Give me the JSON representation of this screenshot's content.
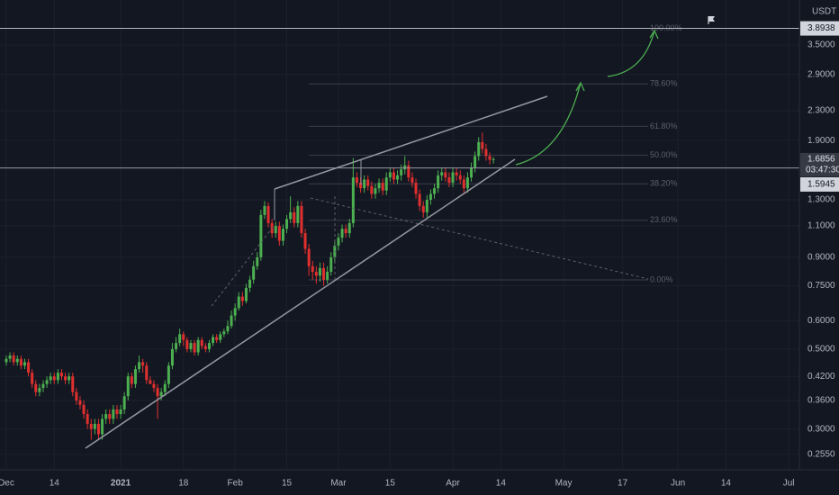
{
  "chart_data": {
    "type": "candlestick",
    "unit": "USDT",
    "log_scale": true,
    "up_color": "#4caf50",
    "down_color": "#e0302e",
    "ylim": [
      0.231,
      4.67
    ],
    "yticks": [
      {
        "value": 3.5,
        "label": "3.5000"
      },
      {
        "value": 2.9,
        "label": "2.9000"
      },
      {
        "value": 2.3,
        "label": "2.3000"
      },
      {
        "value": 1.9,
        "label": "1.9000"
      },
      {
        "value": 1.3,
        "label": "1.3000"
      },
      {
        "value": 1.1,
        "label": "1.1000"
      },
      {
        "value": 0.9,
        "label": "0.9000"
      },
      {
        "value": 0.75,
        "label": "0.7500"
      },
      {
        "value": 0.6,
        "label": "0.6000"
      },
      {
        "value": 0.5,
        "label": "0.5000"
      },
      {
        "value": 0.42,
        "label": "0.4200"
      },
      {
        "value": 0.36,
        "label": "0.3600"
      },
      {
        "value": 0.3,
        "label": "0.3000"
      },
      {
        "value": 0.255,
        "label": "0.2550"
      }
    ],
    "xlim": [
      -1.7,
      214.9
    ],
    "xticks": [
      {
        "value": 0,
        "label": "Dec"
      },
      {
        "value": 13,
        "label": "14"
      },
      {
        "value": 31,
        "label": "2021"
      },
      {
        "value": 48,
        "label": "18"
      },
      {
        "value": 62,
        "label": "Feb"
      },
      {
        "value": 76,
        "label": "15"
      },
      {
        "value": 90,
        "label": "Mar"
      },
      {
        "value": 104,
        "label": "15"
      },
      {
        "value": 121,
        "label": "Apr"
      },
      {
        "value": 134,
        "label": "14"
      },
      {
        "value": 151,
        "label": "May"
      },
      {
        "value": 167,
        "label": "17"
      },
      {
        "value": 182,
        "label": "Jun"
      },
      {
        "value": 195,
        "label": "14"
      },
      {
        "value": 212,
        "label": "Jul"
      }
    ],
    "open": [
      0.46,
      0.47,
      0.48,
      0.46,
      0.47,
      0.45,
      0.46,
      0.43,
      0.4,
      0.38,
      0.39,
      0.4,
      0.41,
      0.42,
      0.41,
      0.43,
      0.42,
      0.41,
      0.42,
      0.38,
      0.36,
      0.35,
      0.33,
      0.31,
      0.3,
      0.31,
      0.29,
      0.32,
      0.33,
      0.32,
      0.34,
      0.33,
      0.34,
      0.37,
      0.42,
      0.4,
      0.44,
      0.46,
      0.45,
      0.41,
      0.4,
      0.39,
      0.37,
      0.38,
      0.4,
      0.45,
      0.5,
      0.52,
      0.55,
      0.53,
      0.5,
      0.52,
      0.49,
      0.53,
      0.51,
      0.5,
      0.52,
      0.54,
      0.53,
      0.55,
      0.56,
      0.58,
      0.62,
      0.65,
      0.7,
      0.68,
      0.74,
      0.78,
      0.85,
      0.9,
      1.18,
      1.25,
      1.12,
      1.05,
      1.1,
      1.0,
      1.08,
      1.15,
      1.2,
      1.12,
      1.25,
      1.05,
      0.95,
      0.85,
      0.82,
      0.8,
      0.84,
      0.78,
      0.82,
      0.9,
      0.97,
      1.02,
      1.08,
      1.05,
      1.12,
      1.5,
      1.45,
      1.4,
      1.48,
      1.42,
      1.35,
      1.4,
      1.45,
      1.38,
      1.5,
      1.55,
      1.48,
      1.52,
      1.58,
      1.62,
      1.5,
      1.45,
      1.35,
      1.25,
      1.2,
      1.3,
      1.35,
      1.4,
      1.52,
      1.55,
      1.5,
      1.45,
      1.55,
      1.52,
      1.48,
      1.4,
      1.5,
      1.6,
      1.72,
      1.88,
      1.8,
      1.72,
      1.68
    ],
    "high": [
      0.48,
      0.49,
      0.49,
      0.48,
      0.48,
      0.47,
      0.47,
      0.44,
      0.41,
      0.4,
      0.41,
      0.42,
      0.43,
      0.43,
      0.44,
      0.44,
      0.43,
      0.43,
      0.43,
      0.39,
      0.37,
      0.36,
      0.34,
      0.32,
      0.32,
      0.32,
      0.33,
      0.34,
      0.34,
      0.35,
      0.35,
      0.35,
      0.38,
      0.43,
      0.43,
      0.45,
      0.48,
      0.47,
      0.46,
      0.42,
      0.41,
      0.4,
      0.39,
      0.41,
      0.46,
      0.52,
      0.54,
      0.57,
      0.56,
      0.54,
      0.53,
      0.53,
      0.54,
      0.54,
      0.52,
      0.53,
      0.55,
      0.55,
      0.56,
      0.57,
      0.6,
      0.64,
      0.67,
      0.72,
      0.72,
      0.76,
      0.8,
      0.88,
      0.93,
      1.22,
      1.29,
      1.28,
      1.15,
      1.13,
      1.13,
      1.11,
      1.18,
      1.33,
      1.24,
      1.29,
      1.29,
      1.08,
      0.98,
      0.88,
      0.85,
      0.87,
      0.87,
      0.85,
      0.93,
      1.0,
      1.05,
      1.11,
      1.11,
      1.15,
      1.7,
      1.55,
      1.5,
      1.52,
      1.52,
      1.46,
      1.44,
      1.49,
      1.49,
      1.55,
      1.6,
      1.6,
      1.57,
      1.63,
      1.72,
      1.67,
      1.55,
      1.49,
      1.39,
      1.29,
      1.34,
      1.39,
      1.44,
      1.57,
      1.6,
      1.6,
      1.55,
      1.6,
      1.6,
      1.57,
      1.52,
      1.55,
      1.65,
      1.77,
      1.94,
      2.0,
      1.86,
      1.76,
      1.71
    ],
    "low": [
      0.45,
      0.46,
      0.45,
      0.45,
      0.44,
      0.44,
      0.42,
      0.39,
      0.37,
      0.37,
      0.38,
      0.39,
      0.4,
      0.4,
      0.4,
      0.41,
      0.4,
      0.4,
      0.37,
      0.35,
      0.34,
      0.32,
      0.3,
      0.28,
      0.29,
      0.28,
      0.28,
      0.31,
      0.31,
      0.31,
      0.32,
      0.32,
      0.33,
      0.36,
      0.39,
      0.39,
      0.43,
      0.43,
      0.4,
      0.4,
      0.38,
      0.32,
      0.36,
      0.37,
      0.39,
      0.44,
      0.49,
      0.51,
      0.51,
      0.49,
      0.49,
      0.48,
      0.48,
      0.5,
      0.49,
      0.49,
      0.51,
      0.52,
      0.52,
      0.54,
      0.55,
      0.57,
      0.6,
      0.64,
      0.66,
      0.67,
      0.72,
      0.76,
      0.83,
      0.88,
      1.15,
      1.09,
      1.02,
      1.02,
      0.97,
      0.97,
      1.05,
      1.12,
      1.09,
      1.09,
      1.02,
      0.92,
      0.8,
      0.78,
      0.76,
      0.77,
      0.75,
      0.76,
      0.8,
      0.87,
      0.94,
      0.99,
      1.02,
      1.02,
      1.09,
      1.41,
      1.36,
      1.36,
      1.38,
      1.31,
      1.31,
      1.36,
      1.34,
      1.34,
      1.46,
      1.44,
      1.44,
      1.47,
      1.53,
      1.46,
      1.41,
      1.31,
      1.21,
      1.16,
      1.16,
      1.26,
      1.31,
      1.36,
      1.47,
      1.46,
      1.41,
      1.41,
      1.47,
      1.44,
      1.36,
      1.36,
      1.46,
      1.55,
      1.67,
      1.75,
      1.67,
      1.63,
      1.64
    ],
    "close": [
      0.47,
      0.48,
      0.46,
      0.47,
      0.45,
      0.46,
      0.43,
      0.4,
      0.38,
      0.39,
      0.4,
      0.41,
      0.42,
      0.41,
      0.43,
      0.42,
      0.41,
      0.42,
      0.38,
      0.36,
      0.35,
      0.33,
      0.31,
      0.3,
      0.31,
      0.29,
      0.32,
      0.33,
      0.32,
      0.34,
      0.33,
      0.34,
      0.37,
      0.42,
      0.4,
      0.44,
      0.46,
      0.45,
      0.41,
      0.4,
      0.39,
      0.37,
      0.38,
      0.4,
      0.45,
      0.5,
      0.52,
      0.55,
      0.53,
      0.5,
      0.52,
      0.49,
      0.53,
      0.51,
      0.5,
      0.52,
      0.54,
      0.53,
      0.55,
      0.56,
      0.58,
      0.62,
      0.65,
      0.7,
      0.68,
      0.74,
      0.78,
      0.85,
      0.9,
      1.18,
      1.25,
      1.12,
      1.05,
      1.1,
      1.0,
      1.08,
      1.15,
      1.2,
      1.12,
      1.25,
      1.05,
      0.95,
      0.85,
      0.82,
      0.8,
      0.84,
      0.78,
      0.82,
      0.9,
      0.97,
      1.02,
      1.08,
      1.05,
      1.12,
      1.5,
      1.45,
      1.4,
      1.48,
      1.42,
      1.35,
      1.4,
      1.45,
      1.38,
      1.5,
      1.55,
      1.48,
      1.52,
      1.58,
      1.62,
      1.5,
      1.45,
      1.35,
      1.25,
      1.2,
      1.3,
      1.35,
      1.4,
      1.52,
      1.55,
      1.5,
      1.45,
      1.55,
      1.52,
      1.48,
      1.4,
      1.5,
      1.6,
      1.72,
      1.88,
      1.8,
      1.72,
      1.68,
      1.6856
    ],
    "fib": {
      "labels": [
        "100.00%",
        "78.60%",
        "61.80%",
        "50.00%",
        "38.20%",
        "23.60%",
        "0.00%"
      ],
      "prices": [
        3.8938,
        2.73,
        2.08,
        1.73,
        1.44,
        1.14,
        0.779
      ]
    },
    "markers": {
      "high_line": 3.8938,
      "last_price": 1.6856,
      "countdown": "03:47:30",
      "support_line": 1.5945
    }
  }
}
